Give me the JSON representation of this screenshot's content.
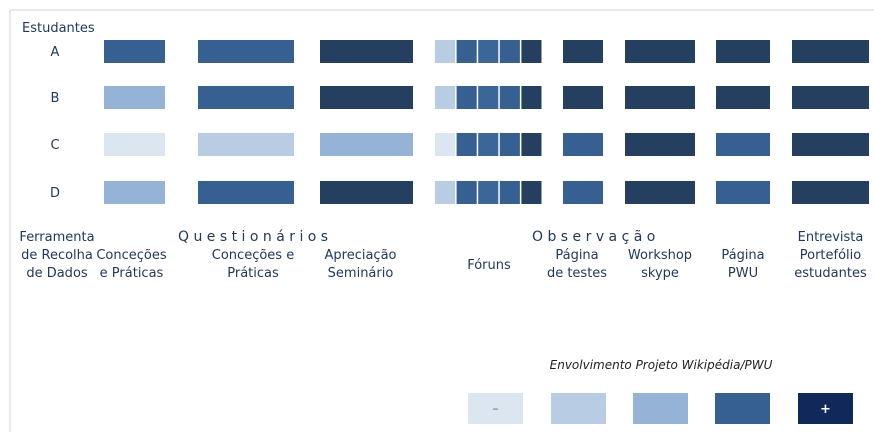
{
  "title": "Estudantes",
  "rows": [
    {
      "label": "A",
      "cells": [
        "#366092",
        "#366092",
        "#243f60",
        [
          "#b8cce4",
          "#366092",
          "#3b6699",
          "#366092",
          "#243f60"
        ],
        "#243f60",
        "#243f60",
        "#243f60",
        "#243f60"
      ]
    },
    {
      "label": "B",
      "cells": [
        "#95b3d7",
        "#366092",
        "#243f60",
        [
          "#b8cce4",
          "#366092",
          "#3b6699",
          "#366092",
          "#243f60"
        ],
        "#243f60",
        "#243f60",
        "#243f60",
        "#243f60"
      ]
    },
    {
      "label": "C",
      "cells": [
        "#dce6f1",
        "#b8cce4",
        "#95b3d7",
        [
          "#dce6f1",
          "#366092",
          "#3b6699",
          "#366092",
          "#243f60"
        ],
        "#366092",
        "#243f60",
        "#366092",
        "#243f60"
      ]
    },
    {
      "label": "D",
      "cells": [
        "#95b3d7",
        "#366092",
        "#243f60",
        [
          "#b8cce4",
          "#366092",
          "#3b6699",
          "#366092",
          "#243f60"
        ],
        "#366092",
        "#243f60",
        "#366092",
        "#243f60"
      ]
    }
  ],
  "tool_label": [
    "Ferramenta",
    "de Recolha",
    "de Dados"
  ],
  "groups": [
    "Q u e s t i o n á r i o s",
    "O b s e r v a ç ã o"
  ],
  "columns": [
    [
      "Conceções",
      "e Práticas"
    ],
    [
      "Conceções e",
      "Práticas"
    ],
    [
      "Apreciação",
      "Seminário"
    ],
    [
      "Fóruns"
    ],
    [
      "Página",
      "de testes"
    ],
    [
      "Workshop",
      "skype"
    ],
    [
      "Página",
      "PWU"
    ],
    [
      "Entrevista",
      "Portefólio",
      "estudantes"
    ]
  ],
  "legend": {
    "title": "Envolvimento Projeto Wikipédia/PWU",
    "items": [
      {
        "label": "–",
        "color": "#dce6f1"
      },
      {
        "color": "#b8cce4"
      },
      {
        "color": "#95b3d7"
      },
      {
        "color": "#366092"
      },
      {
        "label": "+",
        "color": "#10285a"
      }
    ]
  }
}
